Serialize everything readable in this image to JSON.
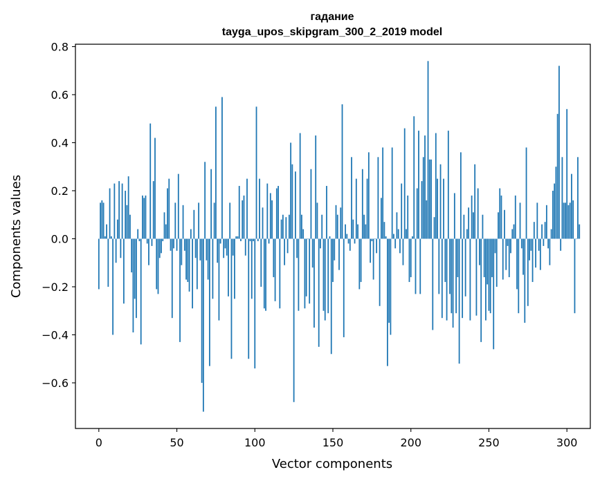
{
  "chart_data": {
    "type": "bar",
    "title": "гадание",
    "subtitle": "tayga_upos_skipgram_300_2_2019 model",
    "xlabel": "Vector components",
    "ylabel": "Components values",
    "xlim": [
      -15,
      315
    ],
    "ylim": [
      -0.79,
      0.81
    ],
    "xticks": [
      0,
      50,
      100,
      150,
      200,
      250,
      300
    ],
    "xtick_labels": [
      "0",
      "50",
      "100",
      "150",
      "200",
      "250",
      "300"
    ],
    "yticks": [
      -0.6,
      -0.4,
      -0.2,
      0.0,
      0.2,
      0.4,
      0.6,
      0.8
    ],
    "ytick_labels": [
      "−0.6",
      "−0.4",
      "−0.2",
      "0.0",
      "0.2",
      "0.4",
      "0.6",
      "0.8"
    ],
    "grid": false,
    "bar_color": "#1f77b4",
    "values": [
      -0.21,
      0.15,
      0.16,
      0.15,
      0.01,
      0.06,
      -0.2,
      0.21,
      0.01,
      -0.4,
      0.23,
      -0.1,
      0.08,
      0.24,
      -0.08,
      0.23,
      -0.27,
      0.2,
      0.14,
      0.26,
      0.1,
      -0.14,
      -0.39,
      -0.25,
      -0.33,
      0.04,
      -0.01,
      -0.44,
      0.18,
      0.17,
      0.18,
      -0.02,
      -0.11,
      0.48,
      -0.03,
      0.24,
      0.42,
      -0.21,
      -0.23,
      -0.08,
      -0.06,
      -0.01,
      0.11,
      0.06,
      0.21,
      0.25,
      -0.05,
      -0.33,
      -0.04,
      0.15,
      -0.05,
      0.27,
      -0.43,
      -0.11,
      0.14,
      -0.05,
      -0.17,
      -0.18,
      -0.22,
      0.04,
      -0.29,
      0.12,
      -0.08,
      -0.21,
      0.15,
      -0.09,
      -0.6,
      -0.72,
      0.32,
      -0.09,
      -0.17,
      -0.53,
      0.29,
      -0.25,
      0.15,
      0.55,
      -0.1,
      -0.34,
      -0.02,
      0.59,
      -0.08,
      -0.04,
      -0.07,
      -0.24,
      0.15,
      -0.5,
      -0.07,
      -0.25,
      0.01,
      0.01,
      0.22,
      -0.01,
      0.16,
      0.18,
      -0.07,
      0.25,
      -0.5,
      -0.01,
      -0.25,
      -0.01,
      -0.54,
      0.55,
      -0.01,
      0.25,
      -0.2,
      0.13,
      -0.29,
      -0.3,
      0.23,
      -0.02,
      0.19,
      0.16,
      -0.16,
      -0.26,
      0.21,
      0.22,
      -0.29,
      0.08,
      0.1,
      -0.11,
      0.09,
      -0.06,
      0.1,
      0.4,
      0.31,
      -0.68,
      0.28,
      -0.08,
      -0.3,
      0.44,
      0.1,
      0.04,
      -0.29,
      -0.24,
      0.0,
      -0.27,
      0.29,
      -0.12,
      -0.37,
      0.43,
      0.15,
      -0.45,
      -0.04,
      0.1,
      -0.3,
      -0.34,
      0.22,
      -0.31,
      0.01,
      -0.48,
      -0.18,
      -0.09,
      0.14,
      0.1,
      -0.13,
      0.13,
      0.56,
      -0.41,
      0.06,
      0.02,
      -0.02,
      -0.05,
      0.34,
      0.08,
      -0.02,
      0.25,
      0.06,
      -0.21,
      -0.18,
      0.29,
      0.1,
      0.06,
      0.25,
      0.36,
      -0.1,
      -0.01,
      -0.17,
      0.0,
      -0.06,
      0.34,
      -0.28,
      0.17,
      0.38,
      0.07,
      0.01,
      -0.53,
      -0.35,
      -0.4,
      0.38,
      0.02,
      -0.04,
      0.11,
      0.04,
      -0.06,
      0.23,
      -0.11,
      0.46,
      0.04,
      0.18,
      -0.18,
      -0.16,
      0.01,
      0.51,
      -0.23,
      0.21,
      0.45,
      -0.23,
      0.24,
      0.34,
      0.43,
      0.16,
      0.74,
      0.33,
      0.33,
      -0.38,
      0.09,
      0.44,
      0.25,
      -0.23,
      0.31,
      -0.33,
      0.25,
      -0.18,
      -0.34,
      0.45,
      -0.23,
      -0.31,
      -0.37,
      0.19,
      -0.31,
      -0.16,
      -0.52,
      0.36,
      -0.33,
      0.1,
      -0.24,
      0.04,
      0.13,
      -0.34,
      0.18,
      0.11,
      0.31,
      -0.32,
      0.21,
      -0.11,
      -0.43,
      0.1,
      -0.16,
      -0.34,
      -0.19,
      -0.3,
      -0.31,
      -0.16,
      -0.46,
      -0.06,
      -0.2,
      0.11,
      0.21,
      0.18,
      -0.17,
      0.12,
      -0.13,
      -0.03,
      -0.16,
      -0.06,
      0.04,
      0.06,
      0.18,
      -0.21,
      -0.31,
      0.15,
      -0.04,
      -0.15,
      -0.35,
      0.38,
      -0.28,
      -0.09,
      -0.05,
      -0.18,
      0.07,
      -0.12,
      0.15,
      -0.05,
      -0.13,
      0.06,
      -0.03,
      0.07,
      0.14,
      -0.04,
      -0.11,
      0.04,
      0.2,
      0.23,
      0.3,
      0.52,
      0.72,
      -0.05,
      0.34,
      0.15,
      0.15,
      0.54,
      0.14,
      0.15,
      0.27,
      0.16,
      -0.31,
      0.0,
      0.34,
      0.06
    ]
  }
}
